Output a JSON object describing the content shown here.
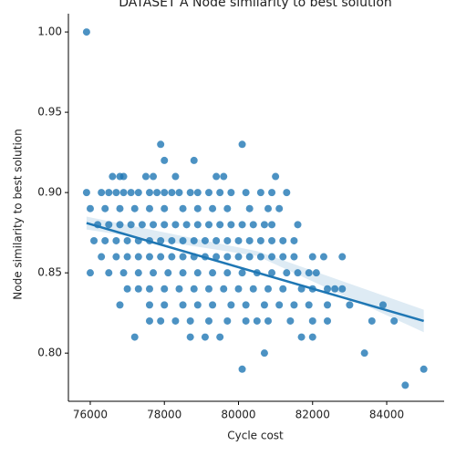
{
  "chart_data": {
    "type": "scatter",
    "title": "DATASET A Node similarity to best solution",
    "x_label": "Cycle cost",
    "y_label": "Node similarity to best solution",
    "color": "#1f77b4",
    "xlim": [
      75410,
      85550
    ],
    "ylim": [
      0.77,
      1.0114
    ],
    "xticks": [
      76000,
      78000,
      80000,
      82000,
      84000
    ],
    "yticks": [
      {
        "value": 0.8,
        "label": "0.80"
      },
      0.85,
      {
        "value": 0.9,
        "label": "0.90"
      },
      0.95,
      {
        "value": 1.0,
        "label": "1.00"
      }
    ],
    "x": [
      75900,
      77900,
      80100,
      78000,
      78800,
      76600,
      76800,
      76900,
      77500,
      77700,
      78300,
      79400,
      79600,
      81000,
      75900,
      76300,
      76500,
      76700,
      76900,
      77100,
      77300,
      77600,
      77800,
      78000,
      78200,
      78400,
      78700,
      78900,
      79200,
      79500,
      79800,
      80200,
      80600,
      80900,
      81300,
      76000,
      76400,
      76800,
      77200,
      77600,
      78000,
      78500,
      78900,
      79300,
      79700,
      80300,
      80800,
      81100,
      76200,
      76500,
      76800,
      77100,
      77400,
      77700,
      78000,
      78300,
      78600,
      78900,
      79200,
      79500,
      79800,
      80100,
      80400,
      80700,
      80900,
      81600,
      76100,
      76400,
      76700,
      77000,
      77300,
      77600,
      77900,
      78200,
      78500,
      78800,
      79100,
      79400,
      79700,
      80000,
      80300,
      80600,
      80900,
      81200,
      81500,
      76300,
      76700,
      77000,
      77300,
      77600,
      77900,
      78200,
      78500,
      78800,
      79100,
      79400,
      79700,
      80000,
      80300,
      80600,
      80900,
      81200,
      81500,
      82000,
      82300,
      82800,
      76000,
      76500,
      76900,
      77300,
      77700,
      78100,
      78500,
      78900,
      79300,
      79700,
      80100,
      80500,
      80900,
      81300,
      81600,
      81900,
      82100,
      77000,
      77300,
      77600,
      78000,
      78400,
      78800,
      79200,
      79600,
      80000,
      80400,
      80800,
      81200,
      81700,
      82000,
      82400,
      82600,
      82800,
      76800,
      77600,
      78000,
      78500,
      78900,
      79300,
      79800,
      80200,
      80700,
      81100,
      81500,
      81900,
      82400,
      83000,
      83900,
      77600,
      77900,
      78300,
      78700,
      79200,
      79700,
      80200,
      80500,
      80800,
      81400,
      82000,
      82400,
      83600,
      84200,
      77200,
      78700,
      79100,
      79500,
      81700,
      82000,
      80700,
      83400,
      80100,
      85000,
      84500
    ],
    "values": [
      1.0,
      0.93,
      0.93,
      0.92,
      0.92,
      0.91,
      0.91,
      0.91,
      0.91,
      0.91,
      0.91,
      0.91,
      0.91,
      0.91,
      0.9,
      0.9,
      0.9,
      0.9,
      0.9,
      0.9,
      0.9,
      0.9,
      0.9,
      0.9,
      0.9,
      0.9,
      0.9,
      0.9,
      0.9,
      0.9,
      0.9,
      0.9,
      0.9,
      0.9,
      0.9,
      0.89,
      0.89,
      0.89,
      0.89,
      0.89,
      0.89,
      0.89,
      0.89,
      0.89,
      0.89,
      0.89,
      0.89,
      0.89,
      0.88,
      0.88,
      0.88,
      0.88,
      0.88,
      0.88,
      0.88,
      0.88,
      0.88,
      0.88,
      0.88,
      0.88,
      0.88,
      0.88,
      0.88,
      0.88,
      0.88,
      0.88,
      0.87,
      0.87,
      0.87,
      0.87,
      0.87,
      0.87,
      0.87,
      0.87,
      0.87,
      0.87,
      0.87,
      0.87,
      0.87,
      0.87,
      0.87,
      0.87,
      0.87,
      0.87,
      0.87,
      0.86,
      0.86,
      0.86,
      0.86,
      0.86,
      0.86,
      0.86,
      0.86,
      0.86,
      0.86,
      0.86,
      0.86,
      0.86,
      0.86,
      0.86,
      0.86,
      0.86,
      0.86,
      0.86,
      0.86,
      0.86,
      0.85,
      0.85,
      0.85,
      0.85,
      0.85,
      0.85,
      0.85,
      0.85,
      0.85,
      0.85,
      0.85,
      0.85,
      0.85,
      0.85,
      0.85,
      0.85,
      0.85,
      0.84,
      0.84,
      0.84,
      0.84,
      0.84,
      0.84,
      0.84,
      0.84,
      0.84,
      0.84,
      0.84,
      0.84,
      0.84,
      0.84,
      0.84,
      0.84,
      0.84,
      0.83,
      0.83,
      0.83,
      0.83,
      0.83,
      0.83,
      0.83,
      0.83,
      0.83,
      0.83,
      0.83,
      0.83,
      0.83,
      0.83,
      0.83,
      0.82,
      0.82,
      0.82,
      0.82,
      0.82,
      0.82,
      0.82,
      0.82,
      0.82,
      0.82,
      0.82,
      0.82,
      0.82,
      0.82,
      0.81,
      0.81,
      0.81,
      0.81,
      0.81,
      0.81,
      0.8,
      0.8,
      0.79,
      0.79,
      0.78
    ],
    "regression": {
      "x": [
        75900,
        85000
      ],
      "values": [
        0.881,
        0.82
      ]
    },
    "band": {
      "x": [
        75900,
        80500,
        85000
      ],
      "lower": [
        0.877,
        0.8605,
        0.813
      ],
      "upper": [
        0.885,
        0.8635,
        0.827
      ]
    }
  }
}
